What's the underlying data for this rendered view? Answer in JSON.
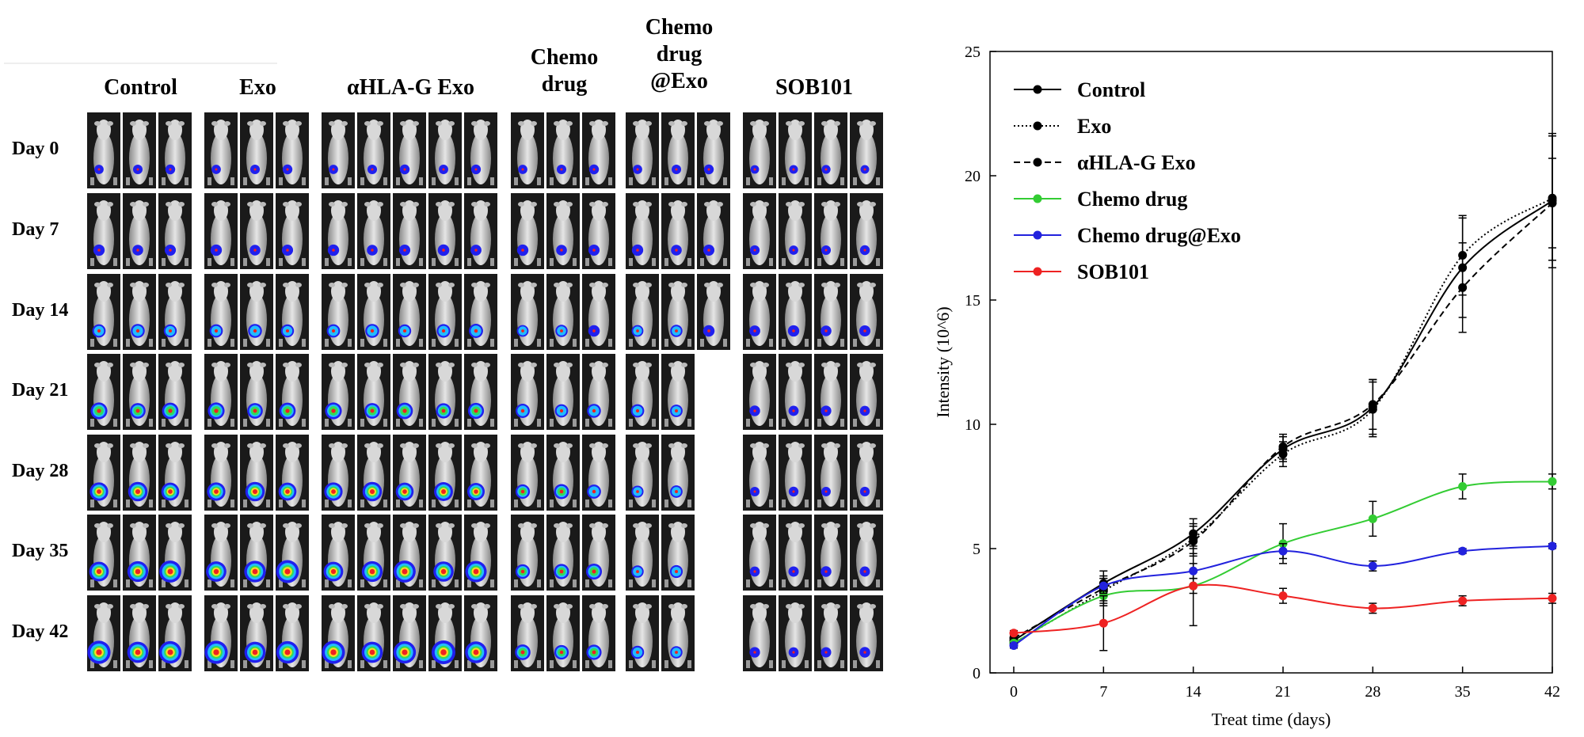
{
  "imaging": {
    "groups": [
      {
        "label": "Control",
        "mice": 3
      },
      {
        "label": "Exo",
        "mice": 3
      },
      {
        "label": "αHLA-G Exo",
        "mice": 5
      },
      {
        "label": "Chemo drug",
        "mice": 3
      },
      {
        "label": "Chemo drug @Exo",
        "mice": 3
      },
      {
        "label": "SOB101",
        "mice": 4
      }
    ],
    "days": [
      "Day 0",
      "Day 7",
      "Day 14",
      "Day 21",
      "Day 28",
      "Day 35",
      "Day 42"
    ]
  },
  "chart_data": {
    "type": "line",
    "xlabel": "Treat time (days)",
    "ylabel": "Intensity (10^6)",
    "xlim": [
      0,
      42
    ],
    "ylim": [
      0,
      25
    ],
    "x_ticks": [
      0,
      7,
      14,
      21,
      28,
      35,
      42
    ],
    "y_ticks": [
      0,
      5,
      10,
      15,
      20,
      25
    ],
    "legend_position": "top-left",
    "grid": false,
    "x": [
      0,
      7,
      14,
      21,
      28,
      35,
      42
    ],
    "series": [
      {
        "name": "Control",
        "color": "#000000",
        "dash": "solid",
        "values": [
          1.3,
          3.6,
          5.6,
          9.0,
          10.7,
          16.3,
          19.0
        ],
        "errors": [
          0.2,
          0.5,
          0.6,
          0.5,
          1.1,
          2.0,
          2.7
        ]
      },
      {
        "name": "Exo",
        "color": "#000000",
        "dash": "dotted",
        "values": [
          1.2,
          3.3,
          5.4,
          8.8,
          10.6,
          16.8,
          19.1
        ],
        "errors": [
          0.2,
          0.5,
          0.6,
          0.5,
          1.1,
          1.6,
          2.5
        ]
      },
      {
        "name": "αHLA-G Exo",
        "color": "#000000",
        "dash": "dashed",
        "values": [
          1.4,
          3.4,
          5.3,
          9.1,
          10.8,
          15.5,
          18.9
        ],
        "errors": [
          0.2,
          0.5,
          0.6,
          0.5,
          1.0,
          1.8,
          1.8
        ]
      },
      {
        "name": "Chemo drug",
        "color": "#33cc33",
        "dash": "solid",
        "values": [
          1.2,
          3.1,
          3.5,
          5.2,
          6.2,
          7.5,
          7.7
        ],
        "errors": [
          0.2,
          0.4,
          1.6,
          0.8,
          0.7,
          0.5,
          0.3
        ]
      },
      {
        "name": "Chemo drug@Exo",
        "color": "#2222dd",
        "dash": "solid",
        "values": [
          1.1,
          3.5,
          4.1,
          4.9,
          4.3,
          4.9,
          5.1
        ],
        "errors": [
          0.1,
          0.3,
          0.3,
          0.3,
          0.2,
          0.1,
          0.1
        ]
      },
      {
        "name": "SOB101",
        "color": "#ee2222",
        "dash": "solid",
        "values": [
          1.6,
          2.0,
          3.5,
          3.1,
          2.6,
          2.9,
          3.0
        ],
        "errors": [
          0.1,
          1.1,
          0.3,
          0.3,
          0.2,
          0.2,
          0.2
        ]
      }
    ]
  }
}
